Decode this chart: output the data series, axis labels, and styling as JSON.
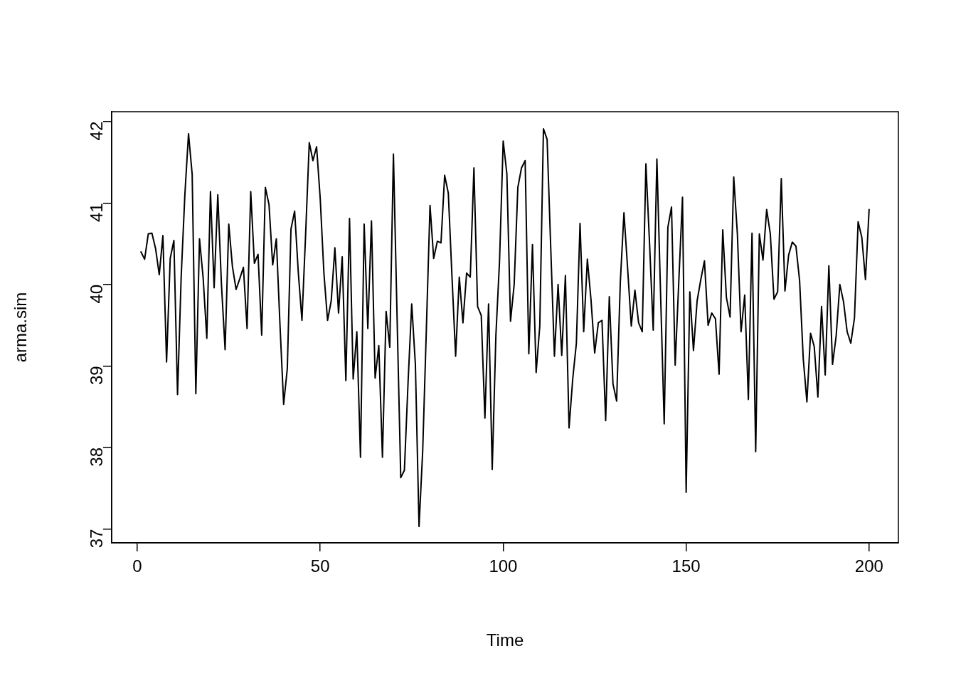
{
  "chart_data": {
    "type": "line",
    "xlabel": "Time",
    "ylabel": "arma.sim",
    "x": [
      1,
      2,
      3,
      4,
      5,
      6,
      7,
      8,
      9,
      10,
      11,
      12,
      13,
      14,
      15,
      16,
      17,
      18,
      19,
      20,
      21,
      22,
      23,
      24,
      25,
      26,
      27,
      28,
      29,
      30,
      31,
      32,
      33,
      34,
      35,
      36,
      37,
      38,
      39,
      40,
      41,
      42,
      43,
      44,
      45,
      46,
      47,
      48,
      49,
      50,
      51,
      52,
      53,
      54,
      55,
      56,
      57,
      58,
      59,
      60,
      61,
      62,
      63,
      64,
      65,
      66,
      67,
      68,
      69,
      70,
      71,
      72,
      73,
      74,
      75,
      76,
      77,
      78,
      79,
      80,
      81,
      82,
      83,
      84,
      85,
      86,
      87,
      88,
      89,
      90,
      91,
      92,
      93,
      94,
      95,
      96,
      97,
      98,
      99,
      100,
      101,
      102,
      103,
      104,
      105,
      106,
      107,
      108,
      109,
      110,
      111,
      112,
      113,
      114,
      115,
      116,
      117,
      118,
      119,
      120,
      121,
      122,
      123,
      124,
      125,
      126,
      127,
      128,
      129,
      130,
      131,
      132,
      133,
      134,
      135,
      136,
      137,
      138,
      139,
      140,
      141,
      142,
      143,
      144,
      145,
      146,
      147,
      148,
      149,
      150,
      151,
      152,
      153,
      154,
      155,
      156,
      157,
      158,
      159,
      160,
      161,
      162,
      163,
      164,
      165,
      166,
      167,
      168,
      169,
      170,
      171,
      172,
      173,
      174,
      175,
      176,
      177,
      178,
      179,
      180,
      181,
      182,
      183,
      184,
      185,
      186,
      187,
      188,
      189,
      190,
      191,
      192,
      193,
      194,
      195,
      196,
      197,
      198,
      199,
      200
    ],
    "series": [
      {
        "color": "#000000",
        "values": [
          40.4,
          40.31,
          40.62,
          40.63,
          40.44,
          40.12,
          40.6,
          39.05,
          40.32,
          40.54,
          38.65,
          40.1,
          41.1,
          41.85,
          41.35,
          38.66,
          40.56,
          40.08,
          39.34,
          41.14,
          39.96,
          41.1,
          40.0,
          39.2,
          40.74,
          40.22,
          39.94,
          40.07,
          40.21,
          39.46,
          41.14,
          40.26,
          40.37,
          39.38,
          41.19,
          40.98,
          40.24,
          40.56,
          39.5,
          38.53,
          38.97,
          40.68,
          40.9,
          40.15,
          39.56,
          40.61,
          41.74,
          41.52,
          41.69,
          41.05,
          40.14,
          39.56,
          39.8,
          40.45,
          39.65,
          40.34,
          38.82,
          40.81,
          38.84,
          39.42,
          37.88,
          40.74,
          39.46,
          40.78,
          38.85,
          39.25,
          37.88,
          39.67,
          39.23,
          41.6,
          39.6,
          37.63,
          37.72,
          38.8,
          39.76,
          39.02,
          37.03,
          37.96,
          39.45,
          40.97,
          40.32,
          40.53,
          40.51,
          41.34,
          41.12,
          40.1,
          39.12,
          40.09,
          39.53,
          40.14,
          40.09,
          41.43,
          39.73,
          39.62,
          38.36,
          39.76,
          37.73,
          39.37,
          40.29,
          41.76,
          41.36,
          39.55,
          40.0,
          41.19,
          41.43,
          41.52,
          39.15,
          40.49,
          38.92,
          39.49,
          41.91,
          41.78,
          40.44,
          39.12,
          40.0,
          39.13,
          40.11,
          38.24,
          38.84,
          39.28,
          40.75,
          39.42,
          40.31,
          39.81,
          39.16,
          39.53,
          39.56,
          38.33,
          39.85,
          38.78,
          38.57,
          40.02,
          40.88,
          40.2,
          39.49,
          39.93,
          39.53,
          39.42,
          41.48,
          40.5,
          39.44,
          41.54,
          39.9,
          38.29,
          40.7,
          40.95,
          39.01,
          40.05,
          41.07,
          37.45,
          39.91,
          39.19,
          39.8,
          40.06,
          40.29,
          39.5,
          39.65,
          39.58,
          38.9,
          40.67,
          39.84,
          39.6,
          41.32,
          40.62,
          39.42,
          39.87,
          38.59,
          40.63,
          37.95,
          40.62,
          40.3,
          40.92,
          40.62,
          39.82,
          39.91,
          41.3,
          39.92,
          40.36,
          40.52,
          40.47,
          40.05,
          39.09,
          38.56,
          39.4,
          39.24,
          38.62,
          39.73,
          38.89,
          40.23,
          39.02,
          39.37,
          40.0,
          39.79,
          39.42,
          39.28,
          39.59,
          40.77,
          40.58,
          40.06,
          40.92
        ]
      }
    ],
    "xlim": [
      -7,
      208
    ],
    "ylim": [
      36.83,
      42.12
    ],
    "xticks": [
      0,
      50,
      100,
      150,
      200
    ],
    "yticks": [
      37,
      38,
      39,
      40,
      41,
      42
    ],
    "grid": false,
    "legend": false,
    "marker": "none",
    "line_style": "solid"
  }
}
